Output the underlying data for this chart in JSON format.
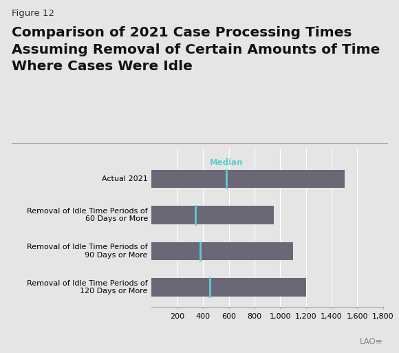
{
  "figure_label": "Figure 12",
  "title": "Comparison of 2021 Case Processing Times\nAssuming Removal of Certain Amounts of Time\nWhere Cases Were Idle",
  "background_color": "#e5e5e5",
  "bar_color": "#6b6777",
  "median_color": "#5ecece",
  "categories": [
    "Removal of Idle Time Periods of\n120 Days or More",
    "Removal of Idle Time Periods of\n90 Days or More",
    "Removal of Idle Time Periods of\n60 Days or More",
    "Actual 2021"
  ],
  "bar_values": [
    1200,
    1100,
    950,
    1500
  ],
  "median_values": [
    450,
    380,
    340,
    580
  ],
  "xlim": [
    0,
    1800
  ],
  "xticks": [
    200,
    400,
    600,
    800,
    1000,
    1200,
    1400,
    1600,
    1800
  ],
  "xtick_labels": [
    "200",
    "400",
    "600",
    "800",
    "1,000",
    "1,200",
    "1,400",
    "1,600",
    "1,800"
  ],
  "median_label": "Median",
  "bar_height": 0.5,
  "title_fontsize": 14.5,
  "figure_label_fontsize": 9.5,
  "tick_fontsize": 8,
  "ytick_fontsize": 8
}
